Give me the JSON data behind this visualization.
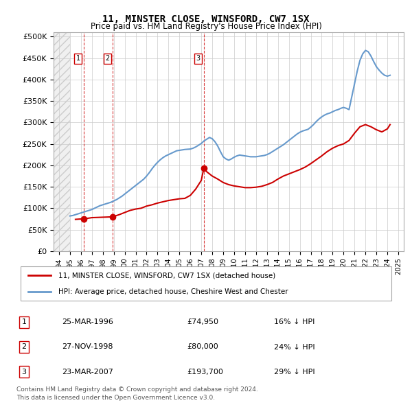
{
  "title": "11, MINSTER CLOSE, WINSFORD, CW7 1SX",
  "subtitle": "Price paid vs. HM Land Registry's House Price Index (HPI)",
  "legend_line1": "11, MINSTER CLOSE, WINSFORD, CW7 1SX (detached house)",
  "legend_line2": "HPI: Average price, detached house, Cheshire West and Chester",
  "footer1": "Contains HM Land Registry data © Crown copyright and database right 2024.",
  "footer2": "This data is licensed under the Open Government Licence v3.0.",
  "transactions": [
    {
      "label": "1",
      "date_num": 1996.23,
      "price": 74950,
      "note": "25-MAR-1996",
      "amount": "£74,950",
      "pct": "16% ↓ HPI"
    },
    {
      "label": "2",
      "date_num": 1998.9,
      "price": 80000,
      "note": "27-NOV-1998",
      "amount": "£80,000",
      "pct": "24% ↓ HPI"
    },
    {
      "label": "3",
      "date_num": 2007.23,
      "price": 193700,
      "note": "23-MAR-2007",
      "amount": "£193,700",
      "pct": "29% ↓ HPI"
    }
  ],
  "hpi_dates": [
    1995.0,
    1995.25,
    1995.5,
    1995.75,
    1996.0,
    1996.25,
    1996.5,
    1996.75,
    1997.0,
    1997.25,
    1997.5,
    1997.75,
    1998.0,
    1998.25,
    1998.5,
    1998.75,
    1999.0,
    1999.25,
    1999.5,
    1999.75,
    2000.0,
    2000.25,
    2000.5,
    2000.75,
    2001.0,
    2001.25,
    2001.5,
    2001.75,
    2002.0,
    2002.25,
    2002.5,
    2002.75,
    2003.0,
    2003.25,
    2003.5,
    2003.75,
    2004.0,
    2004.25,
    2004.5,
    2004.75,
    2005.0,
    2005.25,
    2005.5,
    2005.75,
    2006.0,
    2006.25,
    2006.5,
    2006.75,
    2007.0,
    2007.25,
    2007.5,
    2007.75,
    2008.0,
    2008.25,
    2008.5,
    2008.75,
    2009.0,
    2009.25,
    2009.5,
    2009.75,
    2010.0,
    2010.25,
    2010.5,
    2010.75,
    2011.0,
    2011.25,
    2011.5,
    2011.75,
    2012.0,
    2012.25,
    2012.5,
    2012.75,
    2013.0,
    2013.25,
    2013.5,
    2013.75,
    2014.0,
    2014.25,
    2014.5,
    2014.75,
    2015.0,
    2015.25,
    2015.5,
    2015.75,
    2016.0,
    2016.25,
    2016.5,
    2016.75,
    2017.0,
    2017.25,
    2017.5,
    2017.75,
    2018.0,
    2018.25,
    2018.5,
    2018.75,
    2019.0,
    2019.25,
    2019.5,
    2019.75,
    2020.0,
    2020.25,
    2020.5,
    2020.75,
    2021.0,
    2021.25,
    2021.5,
    2021.75,
    2022.0,
    2022.25,
    2022.5,
    2022.75,
    2023.0,
    2023.25,
    2023.5,
    2023.75,
    2024.0,
    2024.25
  ],
  "hpi_values": [
    82000,
    83000,
    85000,
    87000,
    89000,
    91000,
    93000,
    95000,
    97000,
    100000,
    103000,
    106000,
    108000,
    110000,
    112000,
    114000,
    117000,
    120000,
    124000,
    128000,
    133000,
    138000,
    143000,
    148000,
    153000,
    158000,
    163000,
    168000,
    175000,
    183000,
    192000,
    200000,
    207000,
    213000,
    218000,
    222000,
    225000,
    228000,
    231000,
    234000,
    235000,
    236000,
    237000,
    237500,
    238000,
    240000,
    243000,
    247000,
    251000,
    257000,
    261000,
    265000,
    262000,
    255000,
    245000,
    232000,
    220000,
    215000,
    212000,
    215000,
    219000,
    222000,
    224000,
    223000,
    222000,
    221000,
    220000,
    220000,
    220000,
    221000,
    222000,
    223000,
    225000,
    228000,
    232000,
    236000,
    240000,
    244000,
    248000,
    253000,
    258000,
    263000,
    268000,
    273000,
    277000,
    280000,
    282000,
    284000,
    289000,
    295000,
    302000,
    308000,
    313000,
    317000,
    320000,
    322000,
    325000,
    328000,
    330000,
    333000,
    335000,
    333000,
    330000,
    360000,
    390000,
    420000,
    445000,
    460000,
    468000,
    465000,
    455000,
    442000,
    430000,
    422000,
    415000,
    410000,
    408000,
    410000
  ],
  "price_dates": [
    1995.5,
    1996.0,
    1996.23,
    1997.0,
    1998.0,
    1998.5,
    1998.9,
    1999.5,
    2000.0,
    2000.5,
    2001.0,
    2001.5,
    2002.0,
    2002.5,
    2003.0,
    2003.5,
    2004.0,
    2004.5,
    2005.0,
    2005.5,
    2006.0,
    2006.5,
    2007.0,
    2007.23,
    2007.5,
    2008.0,
    2008.5,
    2009.0,
    2009.5,
    2010.0,
    2010.5,
    2011.0,
    2011.5,
    2012.0,
    2012.5,
    2013.0,
    2013.5,
    2014.0,
    2014.5,
    2015.0,
    2015.5,
    2016.0,
    2016.5,
    2017.0,
    2017.5,
    2018.0,
    2018.5,
    2019.0,
    2019.5,
    2020.0,
    2020.5,
    2021.0,
    2021.5,
    2022.0,
    2022.5,
    2023.0,
    2023.5,
    2024.0,
    2024.25
  ],
  "price_values": [
    74000,
    74950,
    75000,
    78000,
    79000,
    79500,
    80000,
    85000,
    90000,
    95000,
    98000,
    100000,
    105000,
    108000,
    112000,
    115000,
    118000,
    120000,
    122000,
    123000,
    130000,
    145000,
    165000,
    193700,
    185000,
    175000,
    168000,
    160000,
    155000,
    152000,
    150000,
    148000,
    148000,
    149000,
    151000,
    155000,
    160000,
    168000,
    175000,
    180000,
    185000,
    190000,
    196000,
    204000,
    213000,
    222000,
    232000,
    240000,
    246000,
    250000,
    258000,
    275000,
    290000,
    295000,
    290000,
    283000,
    278000,
    285000,
    295000
  ],
  "xlim": [
    1993.5,
    2025.5
  ],
  "ylim": [
    0,
    510000
  ],
  "yticks": [
    0,
    50000,
    100000,
    150000,
    200000,
    250000,
    300000,
    350000,
    400000,
    450000,
    500000
  ],
  "xticks": [
    1994,
    1995,
    1996,
    1997,
    1998,
    1999,
    2000,
    2001,
    2002,
    2003,
    2004,
    2005,
    2006,
    2007,
    2008,
    2009,
    2010,
    2011,
    2012,
    2013,
    2014,
    2015,
    2016,
    2017,
    2018,
    2019,
    2020,
    2021,
    2022,
    2023,
    2024,
    2025
  ],
  "grid_color": "#cccccc",
  "hpi_color": "#6699cc",
  "price_color": "#cc0000",
  "vline_color": "#cc0000",
  "bg_hatch_color": "#e8e8e8",
  "transaction_label_color": "#cc0000",
  "transaction_vline_dates": [
    1996.23,
    1998.9,
    2007.23
  ]
}
